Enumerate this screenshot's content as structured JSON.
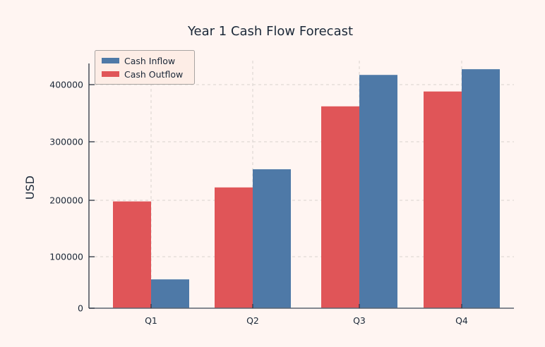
{
  "chart_data": {
    "type": "bar",
    "title": "Year 1 Cash Flow Forecast",
    "xlabel": "",
    "ylabel": "USD",
    "categories": [
      "Q1",
      "Q2",
      "Q3",
      "Q4"
    ],
    "series": [
      {
        "name": "Cash Outflow",
        "color": "#E05558",
        "values": [
          198000,
          222000,
          362000,
          388000
        ]
      },
      {
        "name": "Cash Inflow",
        "color": "#4E79A7",
        "values": [
          56000,
          253000,
          417000,
          427000
        ]
      }
    ],
    "legend": {
      "placement": "top-left",
      "entries": [
        {
          "label": "Cash Inflow",
          "color": "#4E79A7"
        },
        {
          "label": "Cash Outflow",
          "color": "#E05558"
        }
      ]
    },
    "yticks": [
      0,
      100000,
      200000,
      300000,
      400000
    ],
    "ytick_labels": [
      "0",
      "100000",
      "200000",
      "300000",
      "400000"
    ],
    "ylim": [
      0,
      440000
    ],
    "grid": true
  }
}
